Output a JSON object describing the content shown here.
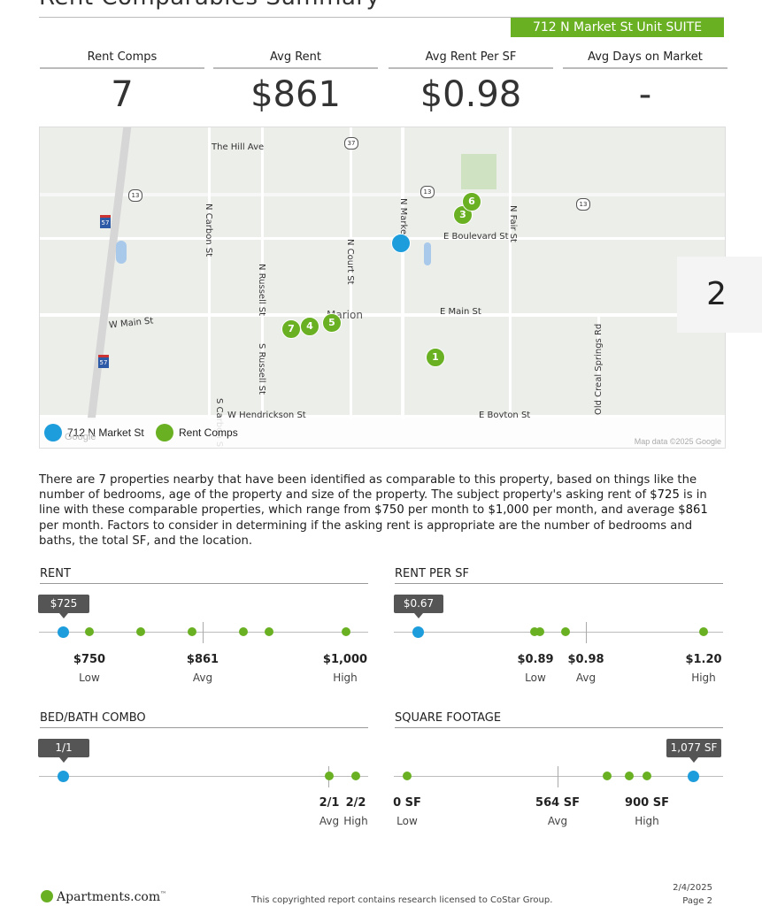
{
  "header": {
    "title": "Rent Comparables Summary",
    "address_band": "712 N Market St Unit SUITE"
  },
  "stats": [
    {
      "label": "Rent Comps",
      "value": "7"
    },
    {
      "label": "Avg Rent",
      "value": "$861"
    },
    {
      "label": "Avg Rent Per SF",
      "value": "$0.98"
    },
    {
      "label": "Avg Days on Market",
      "value": "-"
    }
  ],
  "map": {
    "streets": [
      "The Hill Ave",
      "N Carbon St",
      "N Russell St",
      "S Russell St",
      "N Court St",
      "N Market St",
      "E Boulevard St",
      "N Fair St",
      "W Main St",
      "E Main St",
      "Marion",
      "W Hendrickson St",
      "E Boyton St",
      "Old Creal Springs Rd",
      "S Carbon St"
    ],
    "shields": [
      "37",
      "13",
      "13",
      "13",
      "57",
      "57"
    ],
    "pins": [
      "1",
      "3",
      "4",
      "5",
      "6",
      "7"
    ],
    "legend_subject": "712 N Market St",
    "legend_comps": "Rent Comps",
    "attribution": "Map data ©2025 Google",
    "google_mark": "Google"
  },
  "page_tab": "2",
  "paragraph": {
    "p1": "There are ",
    "count": "7",
    "p2": " properties nearby that have been identified as comparable to this property, based on things like the number of bedrooms, age of the property and size of the property. The subject property's asking rent of ",
    "asking": "$725",
    "p3": " is in line with these comparable properties, which range from ",
    "low": "$750",
    "p4": " per month to ",
    "high": "$1,000",
    "p5": " per month, and average  ",
    "avg": "$861",
    "p6": " per month. Factors to consider in determining if the asking rent is appropriate are the number of bedrooms and baths, the total SF, and the location."
  },
  "rent": {
    "heading": "RENT",
    "subject_label": "$725",
    "low_value": "$750",
    "low_label": "Low",
    "avg_value": "$861",
    "avg_label": "Avg",
    "high_value": "$1,000",
    "high_label": "High"
  },
  "rent_psf": {
    "heading": "RENT PER SF",
    "subject_label": "$0.67",
    "low_value": "$0.89",
    "low_label": "Low",
    "avg_value": "$0.98",
    "avg_label": "Avg",
    "high_value": "$1.20",
    "high_label": "High"
  },
  "bedbath": {
    "heading": "BED/BATH COMBO",
    "subject_label": "1/1",
    "avg_value": "2/1",
    "avg_label": "Avg",
    "high_value": "2/2",
    "high_label": "High"
  },
  "sqft": {
    "heading": "SQUARE FOOTAGE",
    "subject_label": "1,077 SF",
    "low_value": "0 SF",
    "low_label": "Low",
    "avg_value": "564 SF",
    "avg_label": "Avg",
    "high_value": "900 SF",
    "high_label": "High"
  },
  "footer": {
    "logo": "Apartments.com",
    "logo_tm": "™",
    "copyright": "This copyrighted report contains research licensed to CoStar Group.",
    "date": "2/4/2025",
    "page": "Page 2"
  },
  "colors": {
    "accent_green": "#6ab023",
    "subject_blue": "#1e9ddc"
  }
}
